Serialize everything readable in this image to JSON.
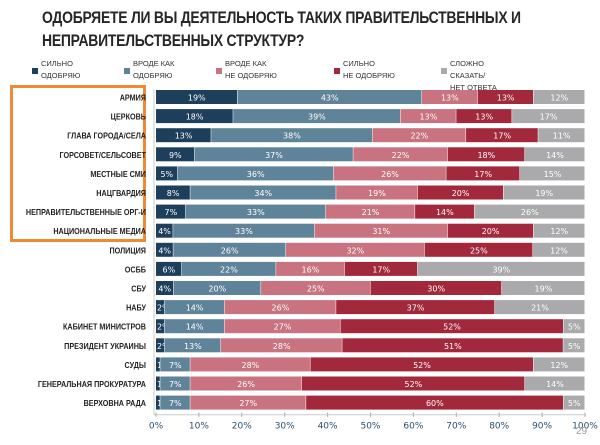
{
  "chart_data": {
    "type": "bar",
    "orientation": "horizontal",
    "stacked": true,
    "title": "ОДОБРЯЕТЕ ЛИ ВЫ ДЕЯТЕЛЬНОСТЬ ТАКИХ ПРАВИТЕЛЬСТВЕННЫХ И НЕПРАВИТЕЛЬСТВЕННЫХ СТРУКТУР?",
    "title_lines": [
      "ОДОБРЯЕТЕ ЛИ ВЫ ДЕЯТЕЛЬНОСТЬ ТАКИХ ПРАВИТЕЛЬСТВЕННЫХ И",
      "НЕПРАВИТЕЛЬСТВЕННЫХ СТРУКТУР?"
    ],
    "legend_position": "top",
    "xlim": [
      0,
      100
    ],
    "x_ticks": [
      "0%",
      "10%",
      "20%",
      "30%",
      "40%",
      "50%",
      "60%",
      "70%",
      "80%",
      "90%",
      "100%"
    ],
    "categories": [
      "АРМИЯ",
      "ЦЕРКОВЬ",
      "ГЛАВА ГОРОДА/СЕЛА",
      "ГОРСОВЕТ/СЕЛЬСОВЕТ",
      "МЕСТНЫЕ СМИ",
      "НАЦГВАРДИЯ",
      "НЕПРАВИТЕЛЬСТВЕННЫЕ ОРГ-И",
      "НАЦИОНАЛЬНЫЕ МЕДИА",
      "ПОЛИЦИЯ",
      "ОСББ",
      "СБУ",
      "НАБУ",
      "КАБИНЕТ МИНИСТРОВ",
      "ПРЕЗИДЕНТ УКРАИНЫ",
      "СУДЫ",
      "ГЕНЕРАЛЬНАЯ ПРОКУРАТУРА",
      "ВЕРХОВНА РАДА"
    ],
    "highlighted_categories": 8,
    "series": [
      {
        "name": "СИЛЬНО ОДОБРЯЮ",
        "name_lines": [
          "СИЛЬНО",
          "ОДОБРЯЮ"
        ],
        "color": "#1e3f5c",
        "values": [
          19,
          18,
          13,
          9,
          5,
          8,
          7,
          4,
          4,
          6,
          4,
          2,
          2,
          2,
          1,
          1,
          1
        ]
      },
      {
        "name": "ВРОДЕ КАК ОДОБРЯЮ",
        "name_lines": [
          "ВРОДЕ КАК",
          "ОДОБРЯЮ"
        ],
        "color": "#5f8399",
        "values": [
          43,
          39,
          38,
          37,
          36,
          34,
          33,
          33,
          26,
          22,
          20,
          14,
          14,
          13,
          7,
          7,
          7
        ]
      },
      {
        "name": "ВРОДЕ КАК НЕ ОДОБРЯЮ",
        "name_lines": [
          "ВРОДЕ КАК",
          "НЕ ОДОБРЯЮ"
        ],
        "color": "#c8737f",
        "values": [
          13,
          13,
          22,
          22,
          26,
          19,
          21,
          31,
          32,
          16,
          25,
          26,
          27,
          28,
          28,
          26,
          27
        ]
      },
      {
        "name": "СИЛЬНО НЕ ОДОБРЯЮ",
        "name_lines": [
          "СИЛЬНО",
          "НЕ ОДОБРЯЮ"
        ],
        "color": "#a2283b",
        "values": [
          13,
          13,
          17,
          18,
          17,
          20,
          14,
          20,
          25,
          17,
          30,
          37,
          52,
          51,
          52,
          52,
          60
        ]
      },
      {
        "name": "СЛОЖНО СКАЗАТЬ/ НЕТ ОТВЕТА",
        "name_lines": [
          "СЛОЖНО СКАЗАТЬ/",
          "НЕТ ОТВЕТА"
        ],
        "color": "#aaaaac",
        "values": [
          12,
          17,
          11,
          14,
          15,
          19,
          26,
          12,
          12,
          39,
          19,
          21,
          5,
          5,
          12,
          14,
          5
        ]
      }
    ]
  },
  "highlight_color": "#ee8a34",
  "page_number": "29"
}
